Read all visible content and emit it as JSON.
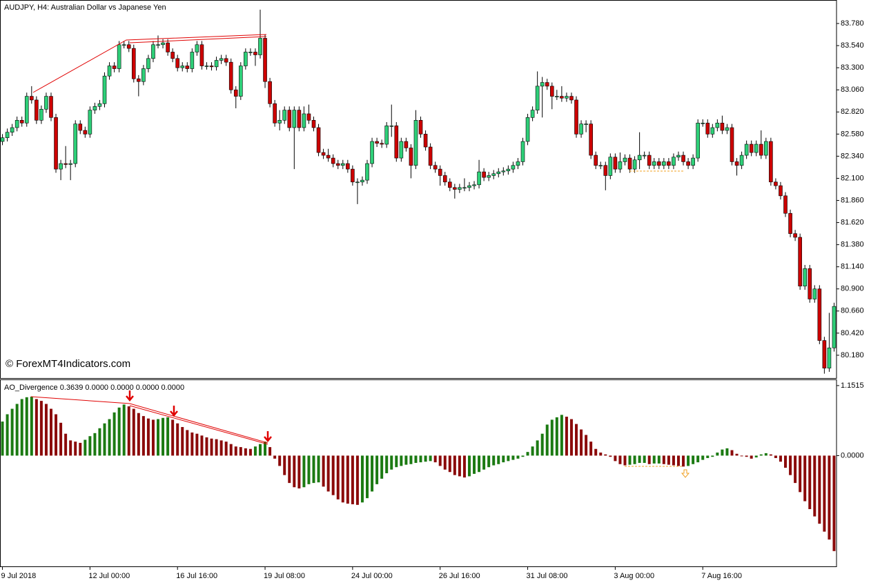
{
  "chart_data": [
    {
      "type": "candlestick",
      "title": "AUDJPY, H4:  Australian Dollar vs Japanese Yen",
      "annotation": "© ForexMT4Indicators.com",
      "categories": [
        "9 Jul 2018",
        null,
        null,
        null,
        null,
        null,
        null,
        null,
        null,
        null,
        null,
        null,
        null,
        null,
        null,
        null,
        null,
        null,
        "12 Jul 00:00",
        null,
        null,
        null,
        null,
        null,
        null,
        null,
        null,
        null,
        null,
        null,
        null,
        null,
        null,
        null,
        null,
        null,
        "16 Jul 16:00",
        null,
        null,
        null,
        null,
        null,
        null,
        null,
        null,
        null,
        null,
        null,
        null,
        null,
        null,
        null,
        null,
        null,
        "19 Jul 08:00",
        null,
        null,
        null,
        null,
        null,
        null,
        null,
        null,
        null,
        null,
        null,
        null,
        null,
        null,
        null,
        null,
        null,
        "24 Jul 00:00",
        null,
        null,
        null,
        null,
        null,
        null,
        null,
        null,
        null,
        null,
        null,
        null,
        null,
        null,
        null,
        null,
        null,
        "26 Jul 16:00",
        null,
        null,
        null,
        null,
        null,
        null,
        null,
        null,
        null,
        null,
        null,
        null,
        null,
        null,
        null,
        null,
        null,
        "31 Jul 08:00",
        null,
        null,
        null,
        null,
        null,
        null,
        null,
        null,
        null,
        null,
        null,
        null,
        null,
        null,
        null,
        null,
        null,
        "3 Aug 00:00",
        null,
        null,
        null,
        null,
        null,
        null,
        null,
        null,
        null,
        null,
        null,
        null,
        null,
        null,
        null,
        null,
        null,
        "7 Aug 16:00",
        null,
        null,
        null,
        null,
        null,
        null,
        null,
        null,
        null,
        null,
        null,
        null,
        null,
        null,
        null,
        null,
        null,
        null,
        null,
        null,
        null,
        null,
        null,
        null,
        null,
        null,
        null
      ],
      "open": [
        82.5,
        82.54,
        82.6,
        82.65,
        82.73,
        82.7,
        82.99,
        82.95,
        82.73,
        82.85,
        82.99,
        82.76,
        82.2,
        82.26,
        82.25,
        82.26,
        82.69,
        82.62,
        82.58,
        82.84,
        82.88,
        82.91,
        83.21,
        83.32,
        83.29,
        83.55,
        83.55,
        83.51,
        83.18,
        83.15,
        83.29,
        83.4,
        83.55,
        83.55,
        83.57,
        83.47,
        83.4,
        83.3,
        83.32,
        83.29,
        83.47,
        83.55,
        83.32,
        83.32,
        83.31,
        83.38,
        83.4,
        83.36,
        83.06,
        82.99,
        83.32,
        83.47,
        83.47,
        83.44,
        83.62,
        83.15,
        82.91,
        82.7,
        82.73,
        82.84,
        82.65,
        82.84,
        82.65,
        82.8,
        82.73,
        82.65,
        82.38,
        82.35,
        82.32,
        82.26,
        82.24,
        82.26,
        82.2,
        82.06,
        82.06,
        82.08,
        82.26,
        82.5,
        82.48,
        82.47,
        82.67,
        82.67,
        82.32,
        82.5,
        82.43,
        82.24,
        82.73,
        82.58,
        82.44,
        82.24,
        82.2,
        82.13,
        82.06,
        82.0,
        81.98,
        82.0,
        82.0,
        82.02,
        82.03,
        82.17,
        82.11,
        82.13,
        82.15,
        82.17,
        82.18,
        82.2,
        82.24,
        82.28,
        82.5,
        82.76,
        82.84,
        83.1,
        83.14,
        83.1,
        82.99,
        82.99,
        82.97,
        82.99,
        82.95,
        82.58,
        82.69,
        82.69,
        82.35,
        82.24,
        82.24,
        82.13,
        82.33,
        82.2,
        82.28,
        82.32,
        82.2,
        82.3,
        82.35,
        82.35,
        82.24,
        82.28,
        82.24,
        82.28,
        82.24,
        82.33,
        82.35,
        82.28,
        82.24,
        82.32,
        82.7,
        82.7,
        82.58,
        82.65,
        82.7,
        82.62,
        82.65,
        82.28,
        82.24,
        82.35,
        82.47,
        82.38,
        82.47,
        82.35,
        82.5,
        82.06,
        82.02,
        81.91,
        81.72,
        81.5,
        81.46,
        80.93,
        81.12,
        80.79,
        80.9,
        80.34,
        80.04,
        80.26
      ],
      "high": [
        82.58,
        82.64,
        82.69,
        82.77,
        82.77,
        83.03,
        83.1,
        82.99,
        82.89,
        83.03,
        83.03,
        82.8,
        82.3,
        82.45,
        82.3,
        82.73,
        82.73,
        82.66,
        82.88,
        82.92,
        82.95,
        83.25,
        83.36,
        83.36,
        83.59,
        83.59,
        83.59,
        83.55,
        83.22,
        83.33,
        83.44,
        83.59,
        83.65,
        83.61,
        83.61,
        83.51,
        83.44,
        83.36,
        83.36,
        83.51,
        83.59,
        83.59,
        83.36,
        83.36,
        83.42,
        83.44,
        83.44,
        83.4,
        83.1,
        83.36,
        83.51,
        83.51,
        83.51,
        83.93,
        83.66,
        83.19,
        82.95,
        82.84,
        82.88,
        82.88,
        82.88,
        82.88,
        82.88,
        82.9,
        82.77,
        82.69,
        82.42,
        82.42,
        82.36,
        82.3,
        82.3,
        82.3,
        82.24,
        82.1,
        82.12,
        82.3,
        82.54,
        82.54,
        82.52,
        82.71,
        82.9,
        82.71,
        82.54,
        82.54,
        82.47,
        82.84,
        82.77,
        82.62,
        82.48,
        82.28,
        82.24,
        82.17,
        82.1,
        82.04,
        82.04,
        82.1,
        82.06,
        82.07,
        82.3,
        82.21,
        82.17,
        82.19,
        82.21,
        82.22,
        82.24,
        82.28,
        82.32,
        82.54,
        82.8,
        82.88,
        83.26,
        83.2,
        83.18,
        83.14,
        83.06,
        83.1,
        83.03,
        83.03,
        82.99,
        82.73,
        82.73,
        82.73,
        82.39,
        82.28,
        82.28,
        82.37,
        82.37,
        82.38,
        82.36,
        82.36,
        82.34,
        82.6,
        82.39,
        82.39,
        82.32,
        82.32,
        82.32,
        82.32,
        82.37,
        82.39,
        82.39,
        82.32,
        82.36,
        82.74,
        82.74,
        82.74,
        82.69,
        82.74,
        82.78,
        82.69,
        82.69,
        82.32,
        82.39,
        82.51,
        82.51,
        82.51,
        82.62,
        82.54,
        82.54,
        82.1,
        82.06,
        81.95,
        81.76,
        81.54,
        81.5,
        81.16,
        81.16,
        80.94,
        80.94,
        80.38,
        80.64,
        80.75
      ],
      "low": [
        82.46,
        82.5,
        82.56,
        82.61,
        82.66,
        82.66,
        82.91,
        82.69,
        82.69,
        82.81,
        82.72,
        82.16,
        82.08,
        82.21,
        82.08,
        82.22,
        82.58,
        82.54,
        82.54,
        82.8,
        82.84,
        82.87,
        83.17,
        83.25,
        83.25,
        83.51,
        83.47,
        83.14,
        82.99,
        83.11,
        83.25,
        83.36,
        83.51,
        83.51,
        83.43,
        83.36,
        83.26,
        83.26,
        83.25,
        83.25,
        83.43,
        83.28,
        83.28,
        83.27,
        83.27,
        83.34,
        83.32,
        83.02,
        82.86,
        82.95,
        83.28,
        83.43,
        83.32,
        83.4,
        83.08,
        82.87,
        82.66,
        82.62,
        82.69,
        82.61,
        82.2,
        82.61,
        82.61,
        82.69,
        82.61,
        82.34,
        82.31,
        82.28,
        82.22,
        82.2,
        82.2,
        82.16,
        82.02,
        81.82,
        82.02,
        82.04,
        82.22,
        82.44,
        82.43,
        82.43,
        82.55,
        82.28,
        82.28,
        82.39,
        82.1,
        82.2,
        82.54,
        82.4,
        82.2,
        82.16,
        82.02,
        82.02,
        81.96,
        81.88,
        81.94,
        81.96,
        81.96,
        81.98,
        81.99,
        82.07,
        82.07,
        82.09,
        82.11,
        82.13,
        82.14,
        82.16,
        82.2,
        82.24,
        82.46,
        82.72,
        82.8,
        82.76,
        83.06,
        82.85,
        82.95,
        82.93,
        82.93,
        82.91,
        82.54,
        82.54,
        82.6,
        82.31,
        82.2,
        82.2,
        81.97,
        82.09,
        82.16,
        82.16,
        82.24,
        82.16,
        82.16,
        82.2,
        82.31,
        82.2,
        82.2,
        82.2,
        82.2,
        82.2,
        82.2,
        82.29,
        82.24,
        82.2,
        82.2,
        82.28,
        82.66,
        82.54,
        82.54,
        82.61,
        82.58,
        82.58,
        82.24,
        82.13,
        82.2,
        82.31,
        82.34,
        82.34,
        82.31,
        82.31,
        82.02,
        81.98,
        81.87,
        81.68,
        81.46,
        81.42,
        80.89,
        80.89,
        80.75,
        80.75,
        80.3,
        79.98,
        80.0,
        80.22
      ],
      "close": [
        82.54,
        82.6,
        82.65,
        82.73,
        82.7,
        82.99,
        82.95,
        82.73,
        82.85,
        82.99,
        82.76,
        82.2,
        82.26,
        82.25,
        82.26,
        82.69,
        82.62,
        82.58,
        82.84,
        82.88,
        82.91,
        83.21,
        83.32,
        83.29,
        83.55,
        83.55,
        83.51,
        83.18,
        83.15,
        83.29,
        83.4,
        83.55,
        83.55,
        83.57,
        83.47,
        83.4,
        83.3,
        83.32,
        83.29,
        83.47,
        83.55,
        83.32,
        83.32,
        83.31,
        83.38,
        83.4,
        83.36,
        83.06,
        82.99,
        83.32,
        83.47,
        83.47,
        83.44,
        83.62,
        83.15,
        82.91,
        82.7,
        82.73,
        82.84,
        82.65,
        82.84,
        82.65,
        82.8,
        82.73,
        82.65,
        82.38,
        82.35,
        82.32,
        82.26,
        82.24,
        82.26,
        82.2,
        82.06,
        82.06,
        82.08,
        82.26,
        82.5,
        82.48,
        82.47,
        82.67,
        82.67,
        82.32,
        82.5,
        82.43,
        82.24,
        82.73,
        82.58,
        82.44,
        82.24,
        82.2,
        82.13,
        82.06,
        82.0,
        81.98,
        82.0,
        82.0,
        82.02,
        82.03,
        82.17,
        82.11,
        82.13,
        82.15,
        82.17,
        82.18,
        82.2,
        82.24,
        82.28,
        82.5,
        82.76,
        82.84,
        83.1,
        83.14,
        83.1,
        82.99,
        82.99,
        82.97,
        82.99,
        82.95,
        82.58,
        82.69,
        82.69,
        82.35,
        82.24,
        82.24,
        82.13,
        82.33,
        82.2,
        82.28,
        82.32,
        82.2,
        82.3,
        82.35,
        82.35,
        82.24,
        82.28,
        82.24,
        82.28,
        82.24,
        82.33,
        82.35,
        82.28,
        82.24,
        82.32,
        82.7,
        82.7,
        82.58,
        82.65,
        82.7,
        82.62,
        82.65,
        82.28,
        82.24,
        82.35,
        82.47,
        82.38,
        82.47,
        82.35,
        82.5,
        82.06,
        82.02,
        81.91,
        81.72,
        81.5,
        81.46,
        80.93,
        81.12,
        80.79,
        80.9,
        80.34,
        80.04,
        80.26,
        80.71
      ],
      "up_color": "#2ecf78",
      "down_color": "#cc0000",
      "ylim": [
        79.94,
        84.02
      ],
      "yticks": [
        {
          "value": 83.78,
          "label": "83.780"
        },
        {
          "value": 83.54,
          "label": "83.540"
        },
        {
          "value": 83.3,
          "label": "83.300"
        },
        {
          "value": 83.06,
          "label": "83.060"
        },
        {
          "value": 82.82,
          "label": "82.820"
        },
        {
          "value": 82.58,
          "label": "82.580"
        },
        {
          "value": 82.34,
          "label": "82.340"
        },
        {
          "value": 82.1,
          "label": "82.100"
        },
        {
          "value": 81.86,
          "label": "81.860"
        },
        {
          "value": 81.62,
          "label": "81.620"
        },
        {
          "value": 81.38,
          "label": "81.380"
        },
        {
          "value": 81.14,
          "label": "81.140"
        },
        {
          "value": 80.9,
          "label": "80.900"
        },
        {
          "value": 80.66,
          "label": "80.660"
        },
        {
          "value": 80.42,
          "label": "80.420"
        },
        {
          "value": 80.18,
          "label": "80.180"
        }
      ]
    },
    {
      "type": "bar",
      "title": "AO_Divergence 0.3639 0.0000 0.0000 0.0000 0.0000",
      "values": [
        0.56,
        0.68,
        0.77,
        0.85,
        0.93,
        0.96,
        0.97,
        0.93,
        0.9,
        0.85,
        0.77,
        0.68,
        0.54,
        0.36,
        0.25,
        0.23,
        0.21,
        0.26,
        0.32,
        0.37,
        0.45,
        0.53,
        0.6,
        0.71,
        0.79,
        0.84,
        0.81,
        0.77,
        0.7,
        0.65,
        0.61,
        0.59,
        0.6,
        0.62,
        0.63,
        0.59,
        0.53,
        0.47,
        0.42,
        0.38,
        0.36,
        0.33,
        0.3,
        0.28,
        0.27,
        0.25,
        0.23,
        0.19,
        0.15,
        0.14,
        0.12,
        0.11,
        0.15,
        0.19,
        0.23,
        0.14,
        -0.05,
        -0.17,
        -0.32,
        -0.45,
        -0.52,
        -0.54,
        -0.52,
        -0.47,
        -0.45,
        -0.44,
        -0.51,
        -0.59,
        -0.65,
        -0.72,
        -0.77,
        -0.79,
        -0.8,
        -0.81,
        -0.77,
        -0.7,
        -0.59,
        -0.47,
        -0.38,
        -0.29,
        -0.23,
        -0.19,
        -0.17,
        -0.15,
        -0.14,
        -0.12,
        -0.11,
        -0.1,
        -0.09,
        -0.11,
        -0.17,
        -0.23,
        -0.27,
        -0.32,
        -0.34,
        -0.36,
        -0.34,
        -0.3,
        -0.27,
        -0.23,
        -0.19,
        -0.16,
        -0.14,
        -0.11,
        -0.09,
        -0.07,
        -0.05,
        -0.02,
        0.06,
        0.15,
        0.25,
        0.36,
        0.51,
        0.59,
        0.63,
        0.67,
        0.64,
        0.6,
        0.52,
        0.43,
        0.34,
        0.23,
        0.11,
        0.05,
        0.02,
        -0.02,
        -0.09,
        -0.14,
        -0.16,
        -0.15,
        -0.14,
        -0.12,
        -0.12,
        -0.14,
        -0.13,
        -0.13,
        -0.14,
        -0.15,
        -0.16,
        -0.17,
        -0.18,
        -0.17,
        -0.14,
        -0.11,
        -0.07,
        -0.04,
        -0.02,
        0.05,
        0.1,
        0.12,
        0.09,
        0.03,
        -0.01,
        -0.02,
        -0.05,
        -0.03,
        0.02,
        0.04,
        0.02,
        -0.04,
        -0.1,
        -0.2,
        -0.32,
        -0.45,
        -0.6,
        -0.75,
        -0.88,
        -1.0,
        -1.12,
        -1.25,
        -1.38,
        -1.57
      ],
      "up_color": "#1b7a12",
      "down_color": "#8b0a0a",
      "ylim": [
        -1.81,
        1.23
      ],
      "yticks": [
        {
          "value": 1.1515,
          "label": "1.1515"
        },
        {
          "value": 0,
          "label": "0.0000"
        }
      ]
    }
  ]
}
